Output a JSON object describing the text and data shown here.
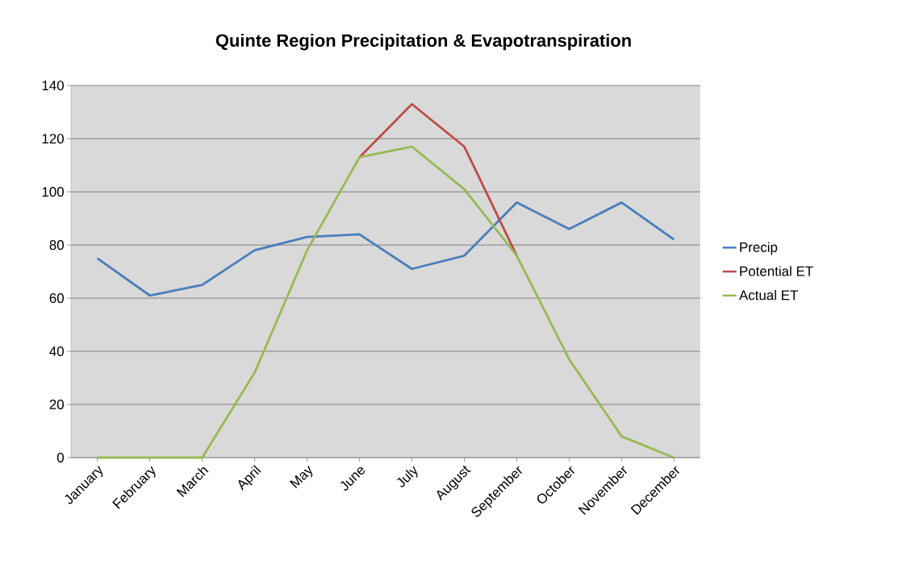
{
  "chart_data": {
    "type": "line",
    "title": "Quinte Region Precipitation & Evapotranspiration",
    "categories": [
      "January",
      "February",
      "March",
      "April",
      "May",
      "June",
      "July",
      "August",
      "September",
      "October",
      "November",
      "December"
    ],
    "series": [
      {
        "name": "Precip",
        "color": "#4a7ebb",
        "values": [
          75,
          61,
          65,
          78,
          83,
          84,
          71,
          76,
          96,
          86,
          96,
          82
        ]
      },
      {
        "name": "Potential ET",
        "color": "#be4b48",
        "values": [
          null,
          null,
          null,
          null,
          null,
          113,
          133,
          117,
          76,
          null,
          null,
          null
        ]
      },
      {
        "name": "Actual ET",
        "color": "#98b954",
        "values": [
          0,
          0,
          0,
          32,
          78,
          113,
          117,
          101,
          76,
          37,
          8,
          0
        ]
      }
    ],
    "ylim": [
      0,
      140
    ],
    "yticks": [
      0,
      20,
      40,
      60,
      80,
      100,
      120,
      140
    ],
    "grid": "y",
    "legend": "right",
    "marker": "none",
    "line_style": "solid"
  }
}
